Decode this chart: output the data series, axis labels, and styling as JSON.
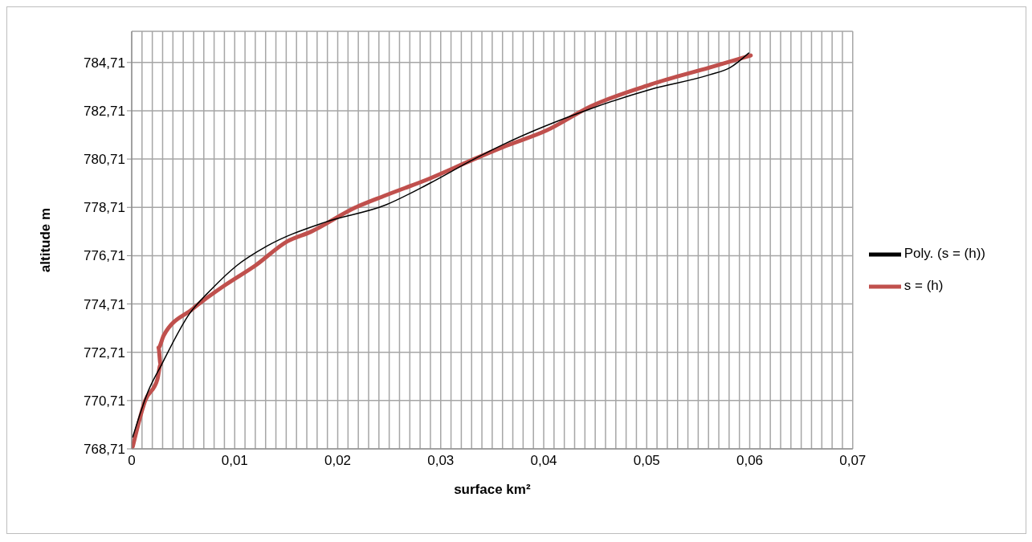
{
  "chart_data": {
    "type": "line",
    "xlabel": "surface km²",
    "ylabel": "altitude m",
    "xlim": [
      0,
      0.07
    ],
    "xticks": [
      0,
      {
        "value": 0.001,
        "label": null
      },
      {
        "value": 0.002,
        "label": null
      },
      {
        "value": 0.003,
        "label": null
      },
      {
        "value": 0.004,
        "label": null
      },
      {
        "value": 0.005,
        "label": null
      },
      {
        "value": 0.006,
        "label": null
      },
      {
        "value": 0.007,
        "label": null
      },
      {
        "value": 0.008,
        "label": null
      },
      {
        "value": 0.009,
        "label": null
      },
      {
        "value": 0.01,
        "label": "0,01"
      },
      {
        "value": 0.011,
        "label": null
      },
      {
        "value": 0.012,
        "label": null
      },
      {
        "value": 0.013,
        "label": null
      },
      {
        "value": 0.014,
        "label": null
      },
      {
        "value": 0.015,
        "label": null
      },
      {
        "value": 0.016,
        "label": null
      },
      {
        "value": 0.017,
        "label": null
      },
      {
        "value": 0.018,
        "label": null
      },
      {
        "value": 0.019,
        "label": null
      },
      {
        "value": 0.02,
        "label": "0,02"
      },
      {
        "value": 0.021,
        "label": null
      },
      {
        "value": 0.022,
        "label": null
      },
      {
        "value": 0.023,
        "label": null
      },
      {
        "value": 0.024,
        "label": null
      },
      {
        "value": 0.025,
        "label": null
      },
      {
        "value": 0.026,
        "label": null
      },
      {
        "value": 0.027,
        "label": null
      },
      {
        "value": 0.028,
        "label": null
      },
      {
        "value": 0.029,
        "label": null
      },
      {
        "value": 0.03,
        "label": "0,03"
      },
      {
        "value": 0.031,
        "label": null
      },
      {
        "value": 0.032,
        "label": null
      },
      {
        "value": 0.033,
        "label": null
      },
      {
        "value": 0.034,
        "label": null
      },
      {
        "value": 0.035,
        "label": null
      },
      {
        "value": 0.036,
        "label": null
      },
      {
        "value": 0.037,
        "label": null
      },
      {
        "value": 0.038,
        "label": null
      },
      {
        "value": 0.039,
        "label": null
      },
      {
        "value": 0.04,
        "label": "0,04"
      },
      {
        "value": 0.041,
        "label": null
      },
      {
        "value": 0.042,
        "label": null
      },
      {
        "value": 0.043,
        "label": null
      },
      {
        "value": 0.044,
        "label": null
      },
      {
        "value": 0.045,
        "label": null
      },
      {
        "value": 0.046,
        "label": null
      },
      {
        "value": 0.047,
        "label": null
      },
      {
        "value": 0.048,
        "label": null
      },
      {
        "value": 0.049,
        "label": null
      },
      {
        "value": 0.05,
        "label": "0,05"
      },
      {
        "value": 0.051,
        "label": null
      },
      {
        "value": 0.052,
        "label": null
      },
      {
        "value": 0.053,
        "label": null
      },
      {
        "value": 0.054,
        "label": null
      },
      {
        "value": 0.055,
        "label": null
      },
      {
        "value": 0.056,
        "label": null
      },
      {
        "value": 0.057,
        "label": null
      },
      {
        "value": 0.058,
        "label": null
      },
      {
        "value": 0.059,
        "label": null
      },
      {
        "value": 0.06,
        "label": "0,06"
      },
      {
        "value": 0.061,
        "label": null
      },
      {
        "value": 0.062,
        "label": null
      },
      {
        "value": 0.063,
        "label": null
      },
      {
        "value": 0.064,
        "label": null
      },
      {
        "value": 0.065,
        "label": null
      },
      {
        "value": 0.066,
        "label": null
      },
      {
        "value": 0.067,
        "label": null
      },
      {
        "value": 0.068,
        "label": null
      },
      {
        "value": 0.069,
        "label": null
      },
      {
        "value": 0.07,
        "label": "0,07"
      }
    ],
    "ylim": [
      768.71,
      786.0
    ],
    "yticks": [
      {
        "value": 768.71,
        "label": "768,71"
      },
      {
        "value": 770.71,
        "label": "770,71"
      },
      {
        "value": 772.71,
        "label": "772,71"
      },
      {
        "value": 774.71,
        "label": "774,71"
      },
      {
        "value": 776.71,
        "label": "776,71"
      },
      {
        "value": 778.71,
        "label": "778,71"
      },
      {
        "value": 780.71,
        "label": "780,71"
      },
      {
        "value": 782.71,
        "label": "782,71"
      },
      {
        "value": 784.71,
        "label": "784,71"
      }
    ],
    "grid": true,
    "legend": "right",
    "marker": "none",
    "line_style": "solid",
    "series": [
      {
        "name": "s = (h)",
        "color": "#c0504d",
        "x": [
          0.0001,
          0.0013,
          0.0025,
          0.0028,
          0.0026,
          0.0031,
          0.0059,
          0.0091,
          0.012,
          0.0151,
          0.0174,
          0.0217,
          0.0246,
          0.0289,
          0.0332,
          0.036,
          0.0403,
          0.0446,
          0.0504,
          0.0561,
          0.0601
        ],
        "values": [
          768.8,
          770.7,
          771.6,
          772.2,
          772.9,
          773.4,
          774.5,
          775.5,
          776.3,
          777.3,
          777.7,
          778.7,
          779.2,
          779.9,
          780.7,
          781.2,
          781.9,
          782.9,
          783.8,
          784.5,
          785.0
        ]
      },
      {
        "name": "Poly. (s = (h))",
        "type": "line",
        "color": "#000000",
        "x": [
          0.0001,
          0.0016,
          0.0029,
          0.0056,
          0.0077,
          0.0102,
          0.0131,
          0.0188,
          0.0246,
          0.0289,
          0.0332,
          0.036,
          0.0446,
          0.0504,
          0.0561,
          0.0581,
          0.0599
        ],
        "values": [
          769.2,
          771.1,
          772.2,
          774.3,
          775.3,
          776.3,
          777.1,
          778.1,
          778.8,
          779.7,
          780.7,
          781.3,
          782.8,
          783.6,
          784.2,
          784.5,
          785.1
        ]
      }
    ]
  }
}
